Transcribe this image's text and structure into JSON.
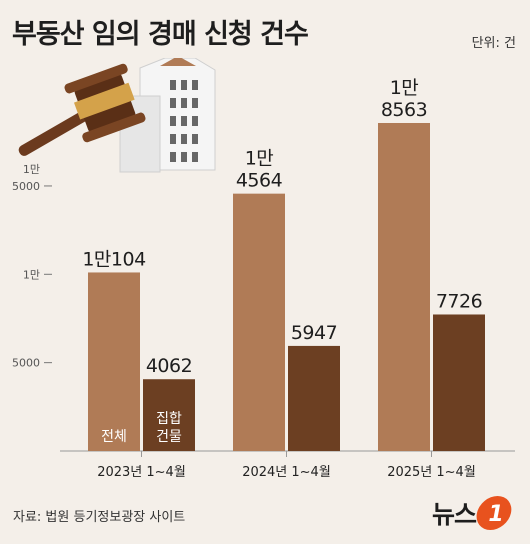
{
  "header": {
    "title": "부동산 임의 경매 신청 건수",
    "unit": "단위: 건"
  },
  "footer": {
    "source": "자료: 법원 등기정보광장 사이트",
    "logo_text": "뉴스",
    "logo_mark": "1"
  },
  "colors": {
    "total": "#b07b56",
    "collective": "#6c3f22",
    "background": "#f4efe9",
    "axis": "#999999",
    "logo_accent": "#e8521e"
  },
  "chart_data": {
    "type": "bar",
    "categories": [
      "2023년 1~4월",
      "2024년 1~4월",
      "2025년 1~4월"
    ],
    "series": [
      {
        "name": "전체",
        "values": [
          10104,
          14564,
          18563
        ],
        "labels": [
          "1만104",
          "1만\n4564",
          "1만\n8563"
        ]
      },
      {
        "name": "집합\n건물",
        "values": [
          4062,
          5947,
          7726
        ],
        "labels": [
          "4062",
          "5947",
          "7726"
        ]
      }
    ],
    "y_ticks": [
      {
        "value": 5000,
        "label": "5000"
      },
      {
        "value": 10000,
        "label": "1만"
      },
      {
        "value": 15000,
        "label": "1만\n5000"
      }
    ],
    "ylim": [
      0,
      20000
    ],
    "grid": false,
    "series_labels_inside_first_group": true
  }
}
